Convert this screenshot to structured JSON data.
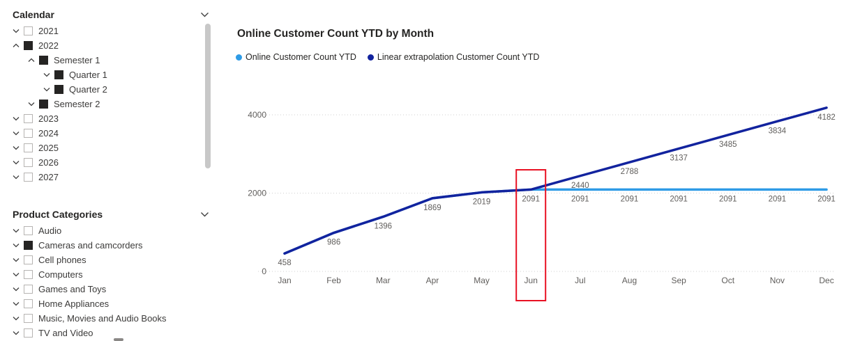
{
  "calendar": {
    "title": "Calendar",
    "items": [
      {
        "label": "2021",
        "level": 0,
        "checked": false,
        "expanded": false
      },
      {
        "label": "2022",
        "level": 0,
        "checked": true,
        "expanded": true
      },
      {
        "label": "Semester 1",
        "level": 1,
        "checked": true,
        "expanded": true
      },
      {
        "label": "Quarter 1",
        "level": 2,
        "checked": true,
        "expanded": false
      },
      {
        "label": "Quarter 2",
        "level": 2,
        "checked": true,
        "expanded": false
      },
      {
        "label": "Semester 2",
        "level": 1,
        "checked": true,
        "expanded": false
      },
      {
        "label": "2023",
        "level": 0,
        "checked": false,
        "expanded": false
      },
      {
        "label": "2024",
        "level": 0,
        "checked": false,
        "expanded": false
      },
      {
        "label": "2025",
        "level": 0,
        "checked": false,
        "expanded": false
      },
      {
        "label": "2026",
        "level": 0,
        "checked": false,
        "expanded": false
      },
      {
        "label": "2027",
        "level": 0,
        "checked": false,
        "expanded": false
      }
    ]
  },
  "product_categories": {
    "title": "Product Categories",
    "items": [
      {
        "label": "Audio",
        "level": 0,
        "checked": false,
        "expanded": false
      },
      {
        "label": "Cameras and camcorders",
        "level": 0,
        "checked": true,
        "expanded": false
      },
      {
        "label": "Cell phones",
        "level": 0,
        "checked": false,
        "expanded": false
      },
      {
        "label": "Computers",
        "level": 0,
        "checked": false,
        "expanded": false
      },
      {
        "label": "Games and Toys",
        "level": 0,
        "checked": false,
        "expanded": false
      },
      {
        "label": "Home Appliances",
        "level": 0,
        "checked": false,
        "expanded": false
      },
      {
        "label": "Music, Movies and Audio Books",
        "level": 0,
        "checked": false,
        "expanded": false
      },
      {
        "label": "TV and Video",
        "level": 0,
        "checked": false,
        "expanded": false
      }
    ]
  },
  "chart_data": {
    "type": "line",
    "title": "Online Customer Count YTD by Month",
    "categories": [
      "Jan",
      "Feb",
      "Mar",
      "Apr",
      "May",
      "Jun",
      "Jul",
      "Aug",
      "Sep",
      "Oct",
      "Nov",
      "Dec"
    ],
    "series": [
      {
        "name": "Online Customer Count YTD",
        "color": "#2e9be6",
        "values": [
          458,
          986,
          1396,
          1869,
          2019,
          2091,
          2091,
          2091,
          2091,
          2091,
          2091,
          2091
        ]
      },
      {
        "name": "Linear extrapolation Customer Count YTD",
        "color": "#12239e",
        "values": [
          458,
          986,
          1396,
          1869,
          2019,
          2091,
          2440,
          2788,
          3137,
          3485,
          3834,
          4182
        ]
      }
    ],
    "ylim": [
      0,
      4000
    ],
    "yticks": [
      0,
      2000,
      4000
    ],
    "grid": "dotted-horizontal",
    "legend_position": "top",
    "label_color": "#605e5c",
    "highlight": {
      "category": "Jun",
      "color": "#e81123"
    }
  }
}
